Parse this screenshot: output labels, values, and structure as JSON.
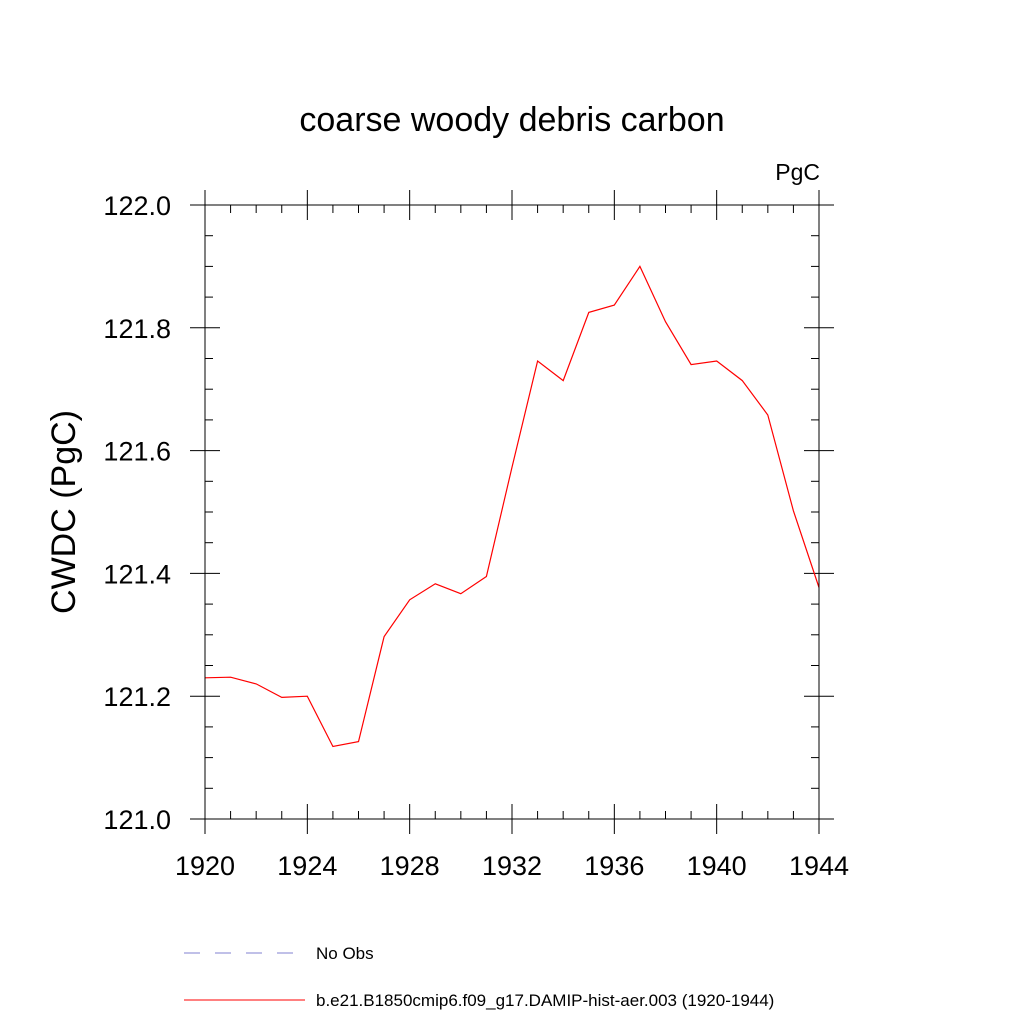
{
  "chart_data": {
    "type": "line",
    "title": "coarse woody debris carbon",
    "units": "PgC",
    "ylabel": "CWDC  (PgC)",
    "xlabel": "",
    "xlim": [
      1920,
      1944
    ],
    "ylim": [
      121.0,
      122.0
    ],
    "x_ticks": [
      1920,
      1924,
      1928,
      1932,
      1936,
      1940,
      1944
    ],
    "x_tick_labels": [
      "1920",
      "1924",
      "1928",
      "1932",
      "1936",
      "1940",
      "1944"
    ],
    "y_ticks": [
      121.0,
      121.2,
      121.4,
      121.6,
      121.8,
      122.0
    ],
    "y_tick_labels": [
      "121.0",
      "121.2",
      "121.4",
      "121.6",
      "121.8",
      "122.0"
    ],
    "x_minor_step": 1,
    "y_minor_step": 0.05,
    "grid": false,
    "legend_position": "bottom",
    "series": [
      {
        "name": "b.e21.B1850cmip6.f09_g17.DAMIP-hist-aer.003 (1920-1944)",
        "color": "#ff0000",
        "style": "solid",
        "x": [
          1920,
          1921,
          1922,
          1923,
          1924,
          1925,
          1926,
          1927,
          1928,
          1929,
          1930,
          1931,
          1932,
          1933,
          1934,
          1935,
          1936,
          1937,
          1938,
          1939,
          1940,
          1941,
          1942,
          1943,
          1944
        ],
        "y": [
          121.23,
          121.231,
          121.22,
          121.198,
          121.2,
          121.118,
          121.126,
          121.297,
          121.357,
          121.383,
          121.367,
          121.395,
          121.573,
          121.746,
          121.714,
          121.825,
          121.837,
          121.9,
          121.81,
          121.74,
          121.746,
          121.714,
          121.658,
          121.502,
          121.377
        ]
      }
    ],
    "legend": [
      {
        "label": "No Obs",
        "color": "#8080d0",
        "style": "dashed"
      },
      {
        "label": "b.e21.B1850cmip6.f09_g17.DAMIP-hist-aer.003 (1920-1944)",
        "color": "#ff0000",
        "style": "solid"
      }
    ]
  }
}
